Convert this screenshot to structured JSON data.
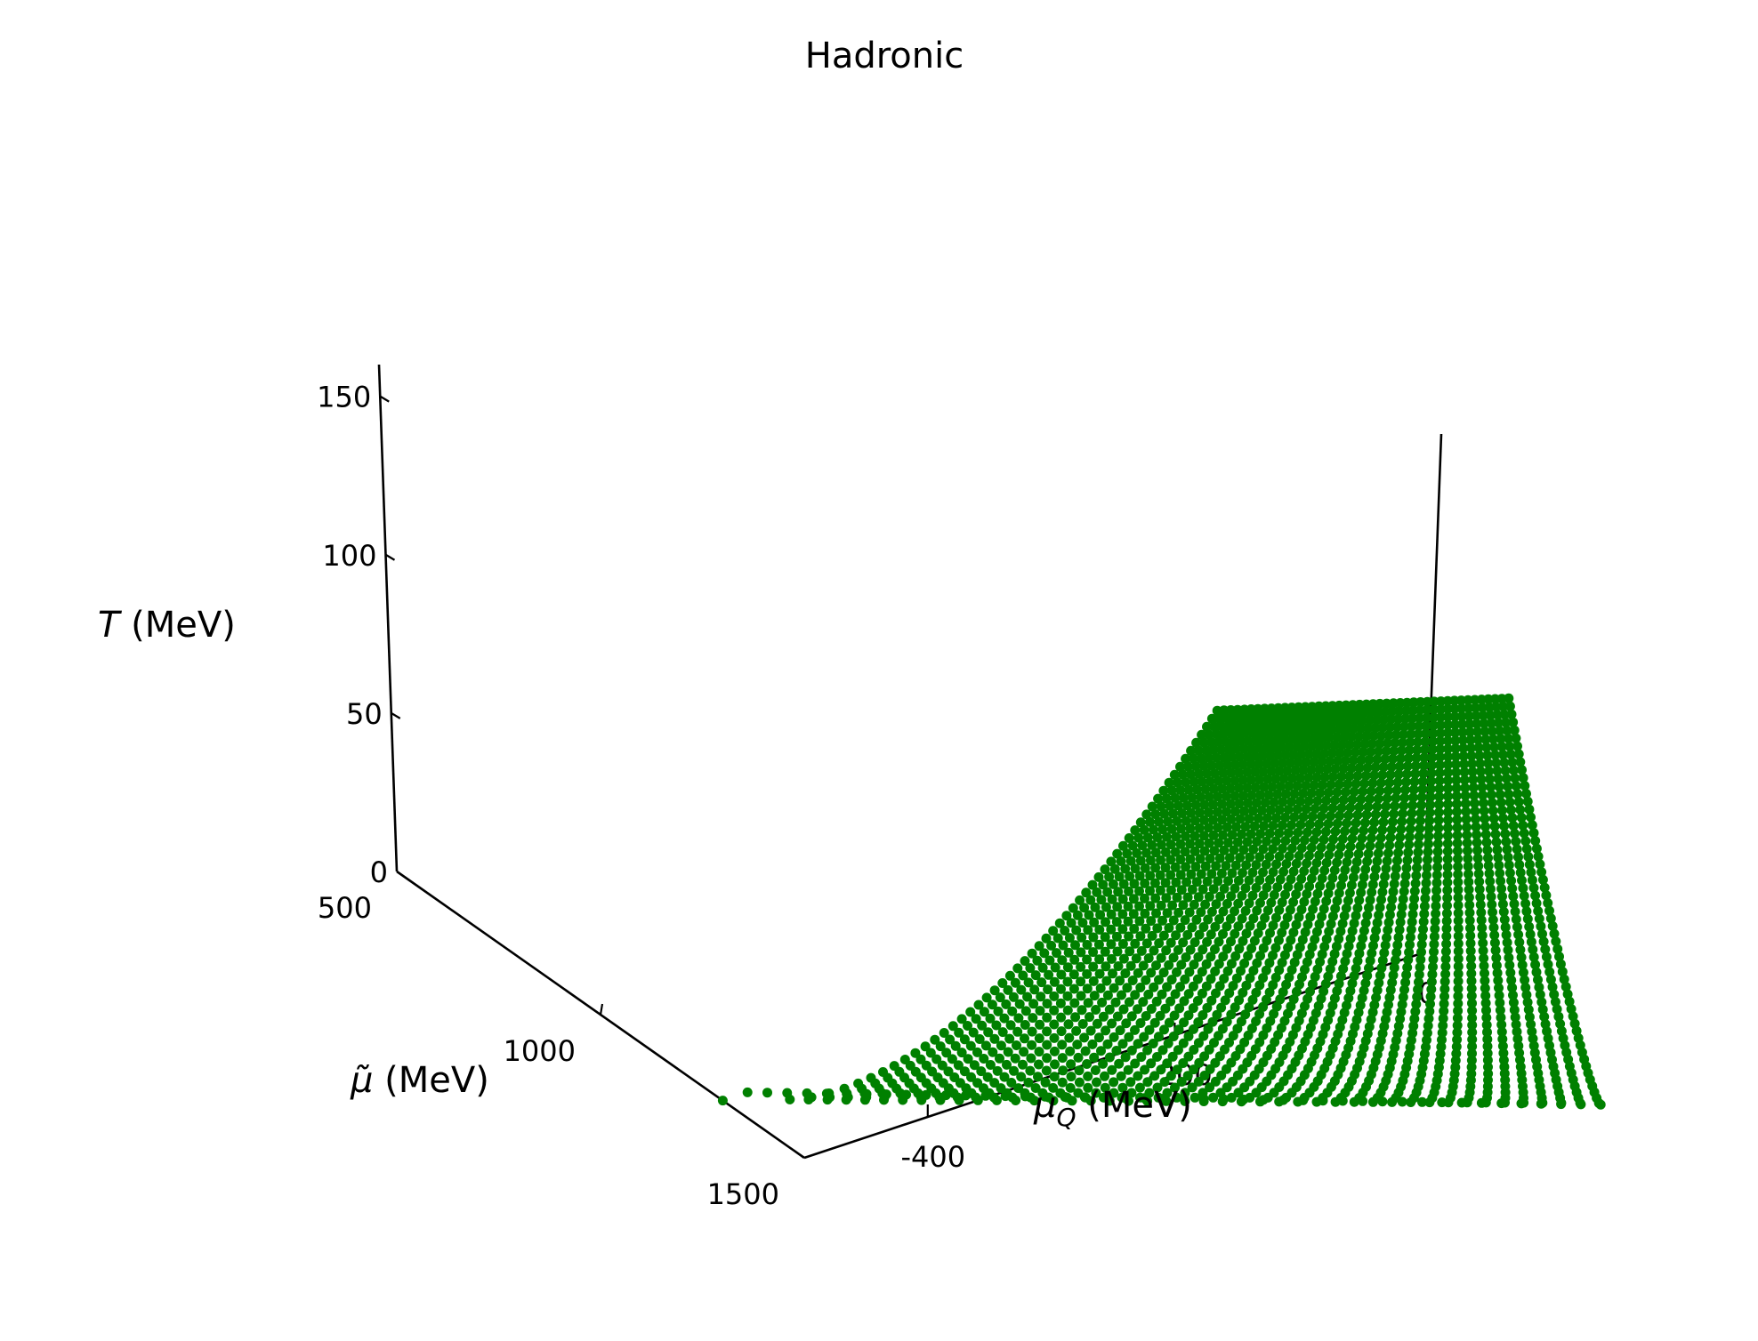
{
  "chart_data": {
    "type": "scatter",
    "projection": "3d",
    "title": "Hadronic",
    "marker_color": "#008000",
    "x_axis": {
      "quantity": "μ_Q",
      "label_main": "μ",
      "label_sub": "Q",
      "label_unit": " (MeV)",
      "range": [
        -500,
        0
      ],
      "ticks": [
        {
          "value": -400,
          "label": "-400"
        },
        {
          "value": -200,
          "label": "-200"
        },
        {
          "value": 0,
          "label": "0"
        }
      ]
    },
    "y_axis": {
      "quantity": "μ̃",
      "label_main": "μ̃",
      "label_unit": " (MeV)",
      "range": [
        500,
        1500
      ],
      "ticks": [
        {
          "value": 500,
          "label": "500"
        },
        {
          "value": 1000,
          "label": "1000"
        },
        {
          "value": 1500,
          "label": "1500"
        }
      ]
    },
    "z_axis": {
      "quantity": "T",
      "label_main": "T",
      "label_unit": " (MeV)",
      "range": [
        0,
        160
      ],
      "ticks": [
        {
          "value": 0,
          "label": "0"
        },
        {
          "value": 50,
          "label": "50"
        },
        {
          "value": 100,
          "label": "100"
        },
        {
          "value": 150,
          "label": "150"
        }
      ]
    },
    "grid": false,
    "point_set": {
      "T_levels": 56,
      "T_range": [
        0,
        156
      ],
      "mu_q_range_at_T0": [
        -480,
        -20
      ],
      "mu_q_range_at_Tmax": [
        -300,
        -130
      ],
      "mu_tilde_range_at_T0": [
        1300,
        2000
      ],
      "mu_tilde_range_at_Tmax": [
        1950,
        2150
      ]
    },
    "outlier_points": [
      {
        "mu_q": -500,
        "mu_tilde": 1300,
        "T": 0
      }
    ]
  }
}
